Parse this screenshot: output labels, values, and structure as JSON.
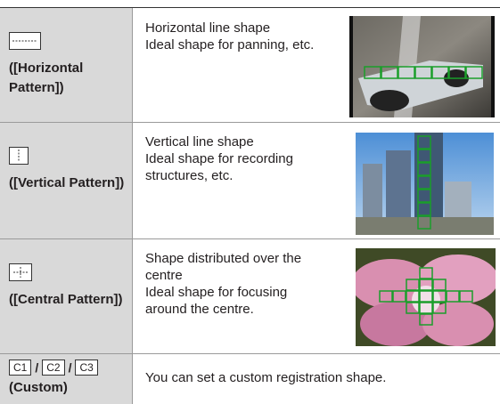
{
  "table": {
    "rows": [
      {
        "label": "([Horizontal Pattern])",
        "description": [
          "Horizontal line shape",
          "Ideal shape for panning, etc."
        ]
      },
      {
        "label": "([Vertical Pattern])",
        "description": [
          "Vertical line shape",
          "Ideal shape for recording structures, etc."
        ]
      },
      {
        "label": "([Central Pattern])",
        "description": [
          "Shape distributed over the centre",
          "Ideal shape for focusing around the centre."
        ]
      },
      {
        "icons": [
          "C1",
          "C2",
          "C3"
        ],
        "separator": "/",
        "label": "(Custom)",
        "description": [
          "You can set a custom registration shape."
        ]
      }
    ]
  }
}
